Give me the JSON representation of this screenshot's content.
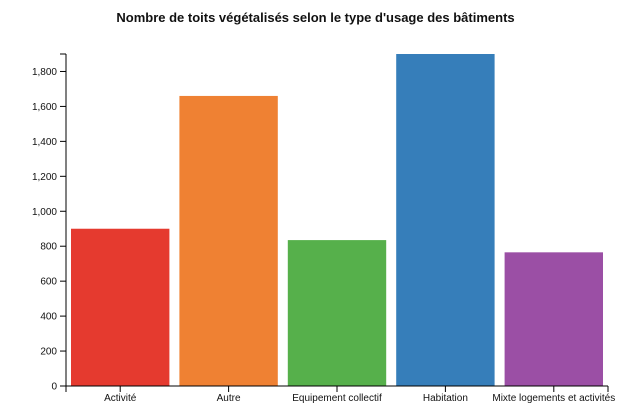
{
  "chart_data": {
    "type": "bar",
    "title": "Nombre de toits végétalisés selon le type d'usage des bâtiments",
    "xlabel": "",
    "ylabel": "",
    "categories": [
      "Activité",
      "Autre",
      "Equipement collectif",
      "Habitation",
      "Mixte logements et activités"
    ],
    "values": [
      900,
      1660,
      835,
      1900,
      765
    ],
    "ylim": [
      0,
      1900
    ],
    "yticks": [
      0,
      200,
      400,
      600,
      800,
      1000,
      1200,
      1400,
      1600,
      1800
    ],
    "ytick_labels": [
      "0",
      "200",
      "400",
      "600",
      "800",
      "1,000",
      "1,200",
      "1,400",
      "1,600",
      "1,800"
    ],
    "colors": [
      "#e53a2f",
      "#ef8133",
      "#56b04b",
      "#367eba",
      "#9b4fa5"
    ],
    "grid": false,
    "legend": "none"
  }
}
